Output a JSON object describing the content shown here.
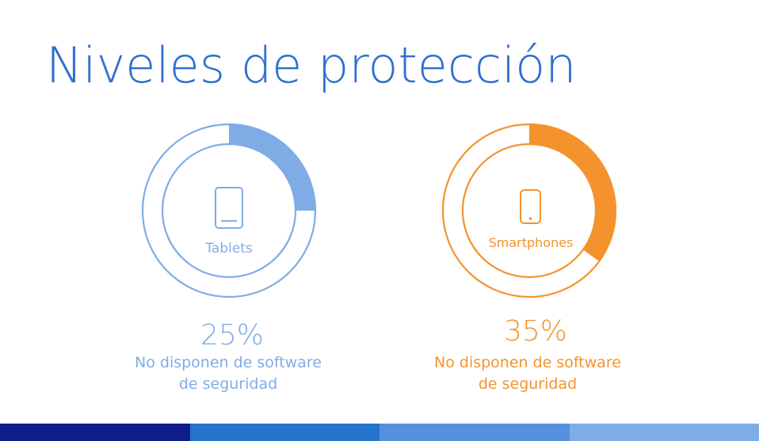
{
  "title": "Niveles de protección",
  "chart_data": [
    {
      "type": "pie",
      "device_icon": "tablet-icon",
      "device_label": "Tablets",
      "value": 25,
      "value_label": "25%",
      "description_lines": [
        "No disponen de software",
        "de seguridad"
      ],
      "color": "#80ace6",
      "accent_text_color": "#80ace6"
    },
    {
      "type": "pie",
      "device_icon": "smartphone-icon",
      "device_label": "Smartphones",
      "value": 35,
      "value_label": "35%",
      "description_lines": [
        "No disponen de software",
        "de seguridad"
      ],
      "color": "#f4932e",
      "accent_text_color": "#f4932e"
    }
  ],
  "footer_colors": [
    "#0f1d8a",
    "#2673cc",
    "#5690dc",
    "#7fade8"
  ]
}
